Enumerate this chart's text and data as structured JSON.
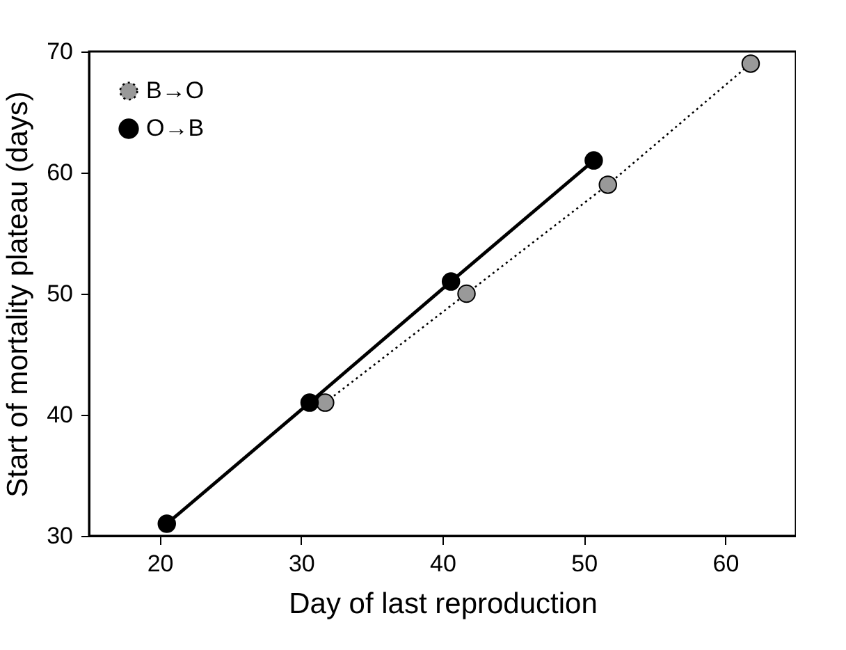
{
  "chart_data": {
    "type": "line",
    "xlabel": "Day of last reproduction",
    "ylabel": "Start of mortality plateau (days)",
    "xlim": [
      15,
      65
    ],
    "xticks": [
      20,
      30,
      40,
      50,
      60
    ],
    "ylim": [
      30,
      70
    ],
    "yticks": [
      30,
      40,
      50,
      60,
      70
    ],
    "grid": false,
    "legend": "top left",
    "marker": "circle",
    "series": [
      {
        "name": "B→O",
        "color": "#999999",
        "line_style": "dotted",
        "x": [
          31.7,
          41.7,
          51.7,
          61.8
        ],
        "values": [
          41,
          50,
          59,
          69
        ]
      },
      {
        "name": "O→B",
        "color": "#000000",
        "line_style": "solid",
        "x": [
          20.5,
          30.6,
          40.6,
          50.7
        ],
        "values": [
          31,
          41,
          51,
          61
        ]
      }
    ]
  }
}
